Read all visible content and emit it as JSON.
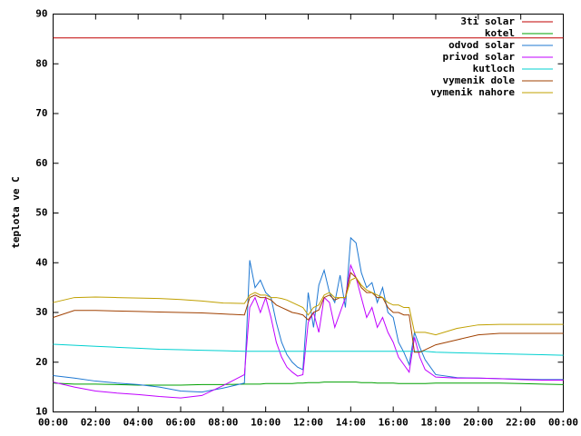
{
  "chart_data": {
    "type": "line",
    "y_label": "teplota ve C",
    "x": [
      0,
      1,
      2,
      3,
      4,
      5,
      6,
      7,
      8,
      9,
      9.25,
      9.5,
      9.75,
      10,
      10.25,
      10.5,
      10.75,
      11,
      11.25,
      11.5,
      11.75,
      12,
      12.25,
      12.5,
      12.75,
      13,
      13.25,
      13.5,
      13.75,
      14,
      14.25,
      14.5,
      14.75,
      15,
      15.25,
      15.5,
      15.75,
      16,
      16.25,
      16.5,
      16.75,
      17,
      17.25,
      17.5,
      18,
      19,
      20,
      21,
      22,
      23,
      24
    ],
    "xlim": [
      0,
      24
    ],
    "xticks": [
      {
        "value": 0,
        "label": "00:00"
      },
      {
        "value": 2,
        "label": "02:00"
      },
      {
        "value": 4,
        "label": "04:00"
      },
      {
        "value": 6,
        "label": "06:00"
      },
      {
        "value": 8,
        "label": "08:00"
      },
      {
        "value": 10,
        "label": "10:00"
      },
      {
        "value": 12,
        "label": "12:00"
      },
      {
        "value": 14,
        "label": "14:00"
      },
      {
        "value": 16,
        "label": "16:00"
      },
      {
        "value": 18,
        "label": "18:00"
      },
      {
        "value": 20,
        "label": "20:00"
      },
      {
        "value": 22,
        "label": "22:00"
      },
      {
        "value": 24,
        "label": "00:00"
      }
    ],
    "ylim": [
      10,
      90
    ],
    "yticks": [
      10,
      20,
      30,
      40,
      50,
      60,
      70,
      80,
      90
    ],
    "legend": "top-right",
    "series": [
      {
        "name": "3ti solar",
        "color": "#c00000",
        "values": [
          85.2,
          85.2,
          85.2,
          85.2,
          85.2,
          85.2,
          85.2,
          85.2,
          85.2,
          85.2,
          85.2,
          85.2,
          85.2,
          85.2,
          85.2,
          85.2,
          85.2,
          85.2,
          85.2,
          85.2,
          85.2,
          85.2,
          85.2,
          85.2,
          85.2,
          85.2,
          85.2,
          85.2,
          85.2,
          85.2,
          85.2,
          85.2,
          85.2,
          85.2,
          85.2,
          85.2,
          85.2,
          85.2,
          85.2,
          85.2,
          85.2,
          85.2,
          85.2,
          85.2,
          85.2,
          85.2,
          85.2,
          85.2,
          85.2,
          85.2,
          85.2
        ]
      },
      {
        "name": "kotel",
        "color": "#00a000",
        "values": [
          15.8,
          15.6,
          15.6,
          15.5,
          15.4,
          15.4,
          15.4,
          15.5,
          15.5,
          15.6,
          15.6,
          15.6,
          15.6,
          15.7,
          15.7,
          15.7,
          15.7,
          15.7,
          15.7,
          15.8,
          15.8,
          15.9,
          15.9,
          15.9,
          16.0,
          16.0,
          16.0,
          16.0,
          16.0,
          16.0,
          16.0,
          15.9,
          15.9,
          15.9,
          15.8,
          15.8,
          15.8,
          15.8,
          15.7,
          15.7,
          15.7,
          15.7,
          15.7,
          15.7,
          15.8,
          15.8,
          15.8,
          15.8,
          15.7,
          15.6,
          15.5
        ]
      },
      {
        "name": "odvod solar",
        "color": "#1e78d2",
        "values": [
          17.3,
          16.8,
          16.2,
          15.8,
          15.5,
          15.0,
          14.2,
          14.0,
          14.8,
          15.8,
          40.5,
          35,
          36.5,
          34,
          33,
          28,
          24,
          21.5,
          20,
          19,
          18.5,
          34,
          27,
          35.5,
          38.5,
          34,
          32,
          37.5,
          31,
          45,
          44,
          38,
          35,
          36,
          32,
          35,
          30,
          29,
          24,
          22,
          19.5,
          26,
          23,
          20.5,
          17.5,
          16.9,
          16.8,
          16.7,
          16.6,
          16.5,
          16.5
        ]
      },
      {
        "name": "privod solar",
        "color": "#c000ff",
        "values": [
          16.0,
          15.0,
          14.2,
          13.8,
          13.5,
          13.1,
          12.8,
          13.3,
          15.3,
          17.5,
          31,
          33,
          30,
          33,
          29,
          24,
          21,
          19,
          18,
          17.2,
          17.5,
          28,
          30,
          26,
          33,
          32,
          27,
          30,
          33,
          39.5,
          37,
          33,
          29,
          31,
          27,
          29,
          26,
          24,
          21,
          19.5,
          18,
          25,
          21,
          18.5,
          17,
          16.8,
          16.8,
          16.7,
          16.5,
          16.4,
          16.4
        ]
      },
      {
        "name": "kutloch",
        "color": "#00d0d0",
        "values": [
          23.6,
          23.4,
          23.2,
          23.0,
          22.8,
          22.6,
          22.5,
          22.4,
          22.3,
          22.2,
          22.2,
          22.2,
          22.2,
          22.2,
          22.2,
          22.2,
          22.2,
          22.2,
          22.2,
          22.2,
          22.2,
          22.2,
          22.2,
          22.2,
          22.2,
          22.2,
          22.2,
          22.2,
          22.2,
          22.2,
          22.2,
          22.2,
          22.2,
          22.2,
          22.2,
          22.2,
          22.2,
          22.2,
          22.2,
          22.2,
          22.2,
          22.2,
          22.2,
          22.2,
          22.0,
          21.9,
          21.8,
          21.7,
          21.6,
          21.5,
          21.4
        ]
      },
      {
        "name": "vymenik dole",
        "color": "#a04000",
        "values": [
          29,
          30.4,
          30.4,
          30.3,
          30.2,
          30.1,
          30,
          29.9,
          29.7,
          29.5,
          33,
          33.5,
          33,
          33,
          32.5,
          31.5,
          31,
          30.5,
          30,
          29.8,
          29.5,
          28.5,
          30,
          30.5,
          33,
          33.5,
          32.5,
          33,
          33,
          38,
          37,
          35,
          34,
          34,
          33,
          33,
          31,
          30,
          30,
          29.5,
          29.5,
          22,
          22,
          22.5,
          23.5,
          24.5,
          25.5,
          25.8,
          25.8,
          25.8,
          25.8
        ]
      },
      {
        "name": "vymenik nahore",
        "color": "#c0a000",
        "values": [
          32,
          33,
          33.1,
          33,
          32.9,
          32.8,
          32.6,
          32.3,
          31.9,
          31.8,
          33.5,
          34,
          33.5,
          33.5,
          33,
          33,
          32.8,
          32.5,
          32,
          31.5,
          31,
          29.5,
          31,
          31.5,
          33.5,
          34,
          33,
          33,
          33,
          36.5,
          37,
          35.5,
          34.5,
          34,
          33.5,
          33,
          32,
          31.5,
          31.5,
          31,
          31,
          26,
          26,
          26,
          25.5,
          26.8,
          27.5,
          27.6,
          27.6,
          27.6,
          27.6
        ]
      }
    ]
  }
}
